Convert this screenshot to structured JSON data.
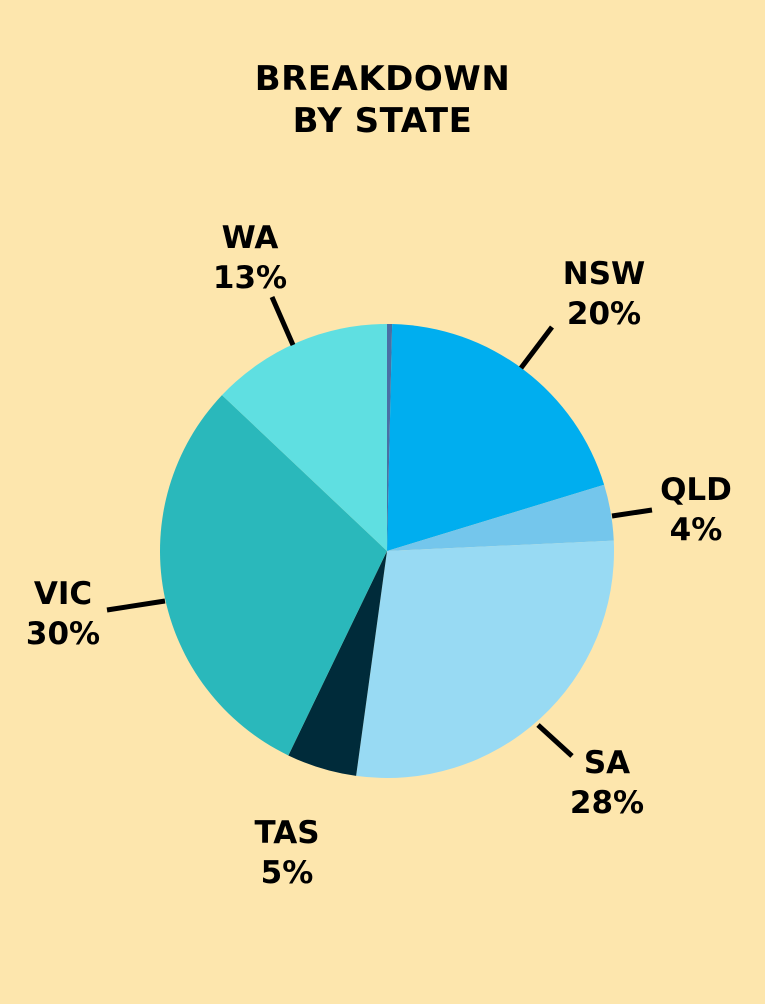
{
  "chart_data": {
    "type": "pie",
    "title_lines": [
      "BREAKDOWN",
      "BY STATE"
    ],
    "slices": [
      {
        "label": "NSW",
        "pct_label": "20%",
        "value": 20,
        "color": "#00aeef"
      },
      {
        "label": "QLD",
        "pct_label": "4%",
        "value": 4,
        "color": "#74c6ec"
      },
      {
        "label": "SA",
        "pct_label": "28%",
        "value": 28,
        "color": "#98daf3"
      },
      {
        "label": "TAS",
        "pct_label": "5%",
        "value": 5,
        "color": "#002b3a"
      },
      {
        "label": "VIC",
        "pct_label": "30%",
        "value": 30,
        "color": "#2ab8bb"
      },
      {
        "label": "WA",
        "pct_label": "13%",
        "value": 13,
        "color": "#5fdfe1"
      }
    ],
    "unlabeled_sliver_color": "#4a6fa5"
  }
}
